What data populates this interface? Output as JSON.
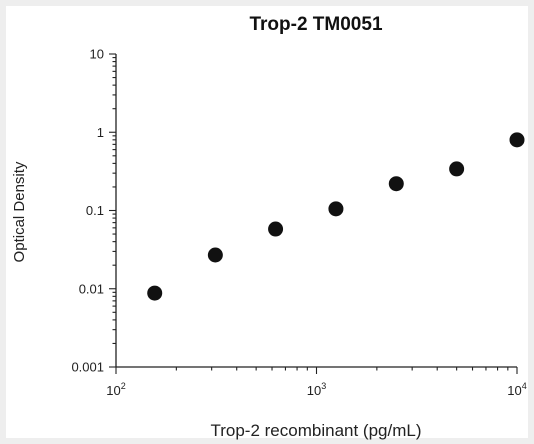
{
  "chart_data": {
    "type": "scatter",
    "title": "Trop-2 TM0051",
    "xlabel": "Trop-2 recombinant (pg/mL)",
    "ylabel": "Optical Density",
    "xscale": "log",
    "yscale": "log",
    "xlim": [
      100,
      10000
    ],
    "ylim": [
      0.001,
      10
    ],
    "x_ticks": [
      {
        "value": 100,
        "base": "10",
        "exp": "2"
      },
      {
        "value": 1000,
        "base": "10",
        "exp": "3"
      },
      {
        "value": 10000,
        "base": "10",
        "exp": "4"
      }
    ],
    "y_ticks": [
      {
        "value": 0.001,
        "label": "0.001"
      },
      {
        "value": 0.01,
        "label": "0.01"
      },
      {
        "value": 0.1,
        "label": "0.1"
      },
      {
        "value": 1,
        "label": "1"
      },
      {
        "value": 10,
        "label": "10"
      }
    ],
    "grid": false,
    "series": [
      {
        "x": [
          156,
          313,
          625,
          1250,
          2500,
          5000,
          10000
        ],
        "y": [
          0.0088,
          0.027,
          0.058,
          0.105,
          0.22,
          0.34,
          0.8
        ]
      }
    ],
    "colors": {
      "marker": "#111111",
      "axis": "#222222",
      "background": "#eeeeee",
      "plot_background": "#ffffff"
    }
  }
}
